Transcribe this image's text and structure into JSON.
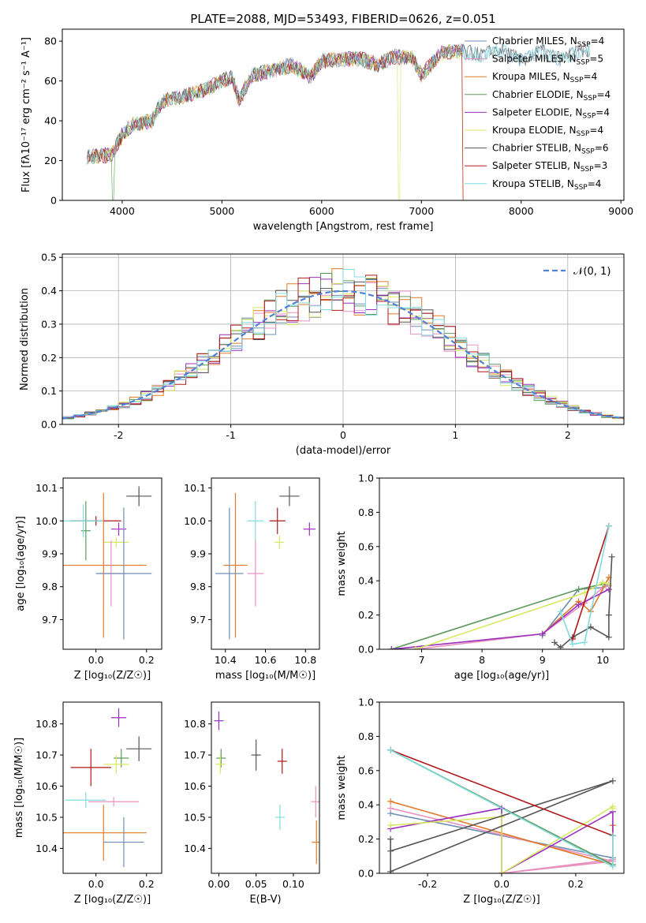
{
  "figure": {
    "title": "PLATE=2088, MJD=53493, FIBERID=0626, z=0.051"
  },
  "series": [
    {
      "key": "chab_miles",
      "name": "Chabrier MILES",
      "nssp": "4",
      "color": "#6f8fb3"
    },
    {
      "key": "salp_miles",
      "name": "Salpeter MILES",
      "nssp": "5",
      "color": "#e890c0"
    },
    {
      "key": "krou_miles",
      "name": "Kroupa MILES",
      "nssp": "4",
      "color": "#e07a28"
    },
    {
      "key": "chab_elodie",
      "name": "Chabrier ELODIE",
      "nssp": "4",
      "color": "#5c9a5c"
    },
    {
      "key": "salp_elodie",
      "name": "Salpeter ELODIE",
      "nssp": "4",
      "color": "#9b30c0"
    },
    {
      "key": "krou_elodie",
      "name": "Kroupa ELODIE",
      "nssp": "4",
      "color": "#d8e860"
    },
    {
      "key": "chab_stelib",
      "name": "Chabrier STELIB",
      "nssp": "6",
      "color": "#555555"
    },
    {
      "key": "salp_stelib",
      "name": "Salpeter STELIB",
      "nssp": "3",
      "color": "#b01818"
    },
    {
      "key": "krou_stelib",
      "name": "Kroupa STELIB",
      "nssp": "4",
      "color": "#80dce0"
    }
  ],
  "chart_data": [
    {
      "id": "spectrum",
      "type": "line",
      "xlabel": "wavelength [Angstrom, rest frame]",
      "ylabel": "Flux [fλ10⁻¹⁷ erg cm⁻² s⁻¹ A⁻¹]",
      "xlim": [
        3400,
        9030
      ],
      "ylim": [
        0,
        86
      ],
      "xticks": [
        4000,
        5000,
        6000,
        7000,
        8000,
        9000
      ],
      "yticks": [
        0,
        20,
        40,
        60,
        80
      ],
      "data_wave": [
        3650,
        3900,
        4000,
        4100,
        4300,
        4400,
        4600,
        4800,
        5000,
        5100,
        5175,
        5300,
        5500,
        5700,
        5890,
        6000,
        6200,
        6400,
        6563,
        6700,
        6900,
        7000,
        7200,
        7400,
        7600,
        7800,
        8000,
        8200,
        8400,
        8600,
        8700
      ],
      "data_flux": [
        22,
        23,
        33,
        38,
        40,
        50,
        52,
        55,
        60,
        62,
        50,
        63,
        65,
        68,
        62,
        70,
        71,
        71,
        68,
        72,
        72,
        63,
        74,
        75,
        73,
        76,
        70,
        75,
        71,
        75,
        76
      ],
      "model_cut": [
        {
          "series": "krou_elodie",
          "wave": 6780
        },
        {
          "series": "salp_stelib",
          "wave": 7420
        },
        {
          "series": "krou_miles",
          "wave": 7420
        },
        {
          "series": "chab_elodie",
          "wave": 3910
        }
      ],
      "grid": false,
      "legend": "top-right"
    },
    {
      "id": "residuals",
      "type": "line",
      "xlabel": "(data-model)/error",
      "ylabel": "Normed distribution",
      "xlim": [
        -2.5,
        2.5
      ],
      "ylim": [
        0,
        0.51
      ],
      "xticks": [
        -2,
        -1,
        0,
        1,
        2
      ],
      "yticks": [
        0.0,
        0.1,
        0.2,
        0.3,
        0.4,
        0.5
      ],
      "normal_label": "𝒩(0, 1)",
      "normal_color": "#5080d8",
      "bin_width": 0.1,
      "grid": true,
      "legend": "top-right"
    },
    {
      "id": "age_z",
      "type": "scatter",
      "xlabel": "Z [log₁₀(Z/Z☉)]",
      "ylabel": "age  [log₁₀(age/yr)]",
      "xlim": [
        -0.13,
        0.26
      ],
      "ylim": [
        9.61,
        10.13
      ],
      "xticks": [
        0.0,
        0.2
      ],
      "yticks": [
        9.7,
        9.8,
        9.9,
        10.0,
        10.1
      ],
      "points": [
        {
          "series": "chab_stelib",
          "x": 0.17,
          "y": 10.075,
          "ex": 0.05,
          "ey": 0.03
        },
        {
          "series": "salp_elodie",
          "x": 0.09,
          "y": 9.975,
          "ex": 0.03,
          "ey": 0.02
        },
        {
          "series": "chab_elodie",
          "x": -0.04,
          "y": 9.97,
          "ex": 0.0,
          "ey": 0.09
        },
        {
          "series": "salp_stelib",
          "x": 0.0,
          "y": 10.0,
          "ex": 0.1,
          "ey": 0.0
        },
        {
          "series": "krou_stelib",
          "x": -0.05,
          "y": 10.0,
          "ex": 0.08,
          "ey": 0.05
        },
        {
          "series": "krou_elodie",
          "x": 0.08,
          "y": 9.935,
          "ex": 0.05,
          "ey": 0.0
        },
        {
          "series": "krou_miles",
          "x": 0.03,
          "y": 9.865,
          "ex": 0.17,
          "ey": 0.22
        },
        {
          "series": "salp_miles",
          "x": 0.06,
          "y": 9.84,
          "ex": 0.06,
          "ey": 0.1
        },
        {
          "series": "chab_miles",
          "x": 0.11,
          "y": 9.84,
          "ex": 0.11,
          "ey": 0.2
        }
      ]
    },
    {
      "id": "age_mass",
      "type": "scatter",
      "xlabel": "mass [log₁₀(M/M☉)]",
      "ylabel": "",
      "xlim": [
        10.33,
        10.87
      ],
      "ylim": [
        9.61,
        10.13
      ],
      "xticks": [
        10.4,
        10.6,
        10.8
      ],
      "yticks": [
        9.7,
        9.8,
        9.9,
        10.0,
        10.1
      ],
      "points": [
        {
          "series": "chab_stelib",
          "x": 10.72,
          "y": 10.075,
          "ex": 0.05,
          "ey": 0.03
        },
        {
          "series": "krou_stelib",
          "x": 10.55,
          "y": 10.0,
          "ex": 0.04,
          "ey": 0.06
        },
        {
          "series": "salp_stelib",
          "x": 10.66,
          "y": 10.0,
          "ex": 0.04,
          "ey": 0.04
        },
        {
          "series": "salp_elodie",
          "x": 10.82,
          "y": 9.975,
          "ex": 0.03,
          "ey": 0.02
        },
        {
          "series": "krou_elodie",
          "x": 10.67,
          "y": 9.935,
          "ex": 0.02,
          "ey": 0.02
        },
        {
          "series": "krou_miles",
          "x": 10.45,
          "y": 9.865,
          "ex": 0.06,
          "ey": 0.22
        },
        {
          "series": "salp_miles",
          "x": 10.55,
          "y": 9.84,
          "ex": 0.04,
          "ey": 0.1
        },
        {
          "series": "chab_miles",
          "x": 10.42,
          "y": 9.84,
          "ex": 0.07,
          "ey": 0.2
        }
      ]
    },
    {
      "id": "mw_age",
      "type": "line",
      "xlabel": "age  [log₁₀(age/yr)]",
      "ylabel": "mass weight",
      "xlim": [
        6.3,
        10.35
      ],
      "ylim": [
        0.0,
        1.0
      ],
      "xticks": [
        7,
        8,
        9,
        10
      ],
      "yticks": [
        0.0,
        0.2,
        0.4,
        0.6,
        0.8,
        1.0
      ],
      "lines": [
        {
          "series": "chab_miles",
          "x": [
            9.0,
            9.6,
            10.0,
            10.1
          ],
          "y": [
            0.08,
            0.35,
            0.36,
            0.38
          ]
        },
        {
          "series": "salp_miles",
          "x": [
            6.9,
            9.0,
            9.7,
            10.0,
            10.1
          ],
          "y": [
            0.0,
            0.09,
            0.27,
            0.36,
            0.37
          ]
        },
        {
          "series": "krou_miles",
          "x": [
            9.0,
            9.6,
            9.8,
            10.1
          ],
          "y": [
            0.09,
            0.28,
            0.22,
            0.42
          ]
        },
        {
          "series": "chab_elodie",
          "x": [
            6.5,
            9.6,
            10.0
          ],
          "y": [
            0.0,
            0.35,
            0.38
          ]
        },
        {
          "series": "salp_elodie",
          "x": [
            6.5,
            9.0,
            9.6,
            10.1
          ],
          "y": [
            0.0,
            0.09,
            0.26,
            0.35
          ]
        },
        {
          "series": "krou_elodie",
          "x": [
            6.9,
            9.7,
            10.0,
            10.1
          ],
          "y": [
            0.0,
            0.33,
            0.39,
            0.38
          ]
        },
        {
          "series": "chab_stelib",
          "x": [
            9.2,
            9.3,
            9.5,
            9.8,
            10.1,
            10.1,
            10.15
          ],
          "y": [
            0.04,
            0.01,
            0.07,
            0.13,
            0.07,
            0.2,
            0.54
          ]
        },
        {
          "series": "salp_stelib",
          "x": [
            9.5,
            10.1
          ],
          "y": [
            0.06,
            0.72
          ]
        },
        {
          "series": "krou_stelib",
          "x": [
            9.3,
            9.5,
            9.7,
            10.1
          ],
          "y": [
            0.22,
            0.03,
            0.04,
            0.72
          ]
        }
      ]
    },
    {
      "id": "mass_z",
      "type": "scatter",
      "xlabel": "Z [log₁₀(Z/Z☉)]",
      "ylabel": "mass [log₁₀(M/M☉)]",
      "xlim": [
        -0.13,
        0.26
      ],
      "ylim": [
        10.32,
        10.87
      ],
      "xticks": [
        0.0,
        0.2
      ],
      "yticks": [
        10.4,
        10.5,
        10.6,
        10.7,
        10.8
      ],
      "points": [
        {
          "series": "salp_elodie",
          "x": 0.09,
          "y": 10.82,
          "ex": 0.03,
          "ey": 0.03
        },
        {
          "series": "chab_stelib",
          "x": 0.17,
          "y": 10.72,
          "ex": 0.05,
          "ey": 0.04
        },
        {
          "series": "chab_elodie",
          "x": 0.1,
          "y": 10.69,
          "ex": 0.03,
          "ey": 0.03
        },
        {
          "series": "krou_elodie",
          "x": 0.08,
          "y": 10.67,
          "ex": 0.05,
          "ey": 0.03
        },
        {
          "series": "salp_stelib",
          "x": -0.02,
          "y": 10.66,
          "ex": 0.08,
          "ey": 0.06
        },
        {
          "series": "krou_stelib",
          "x": -0.04,
          "y": 10.555,
          "ex": 0.08,
          "ey": 0.025
        },
        {
          "series": "salp_miles",
          "x": 0.07,
          "y": 10.55,
          "ex": 0.1,
          "ey": 0.0
        },
        {
          "series": "krou_miles",
          "x": 0.03,
          "y": 10.45,
          "ex": 0.17,
          "ey": 0.09
        },
        {
          "series": "chab_miles",
          "x": 0.11,
          "y": 10.42,
          "ex": 0.08,
          "ey": 0.08
        }
      ]
    },
    {
      "id": "mass_ebv",
      "type": "scatter",
      "xlabel": "E(B-V)",
      "ylabel": "",
      "xlim": [
        -0.01,
        0.135
      ],
      "ylim": [
        10.32,
        10.87
      ],
      "xticks": [
        0.0,
        0.05,
        0.1
      ],
      "xticklabels": [
        "0.00",
        "0.05",
        "0.10"
      ],
      "yticks": [
        10.4,
        10.5,
        10.6,
        10.7,
        10.8
      ],
      "points": [
        {
          "series": "salp_elodie",
          "x": 0.0,
          "y": 10.81,
          "ex": 0.0,
          "ey": 0.03
        },
        {
          "series": "chab_elodie",
          "x": 0.003,
          "y": 10.69,
          "ex": 0.0,
          "ey": 0.03
        },
        {
          "series": "krou_elodie",
          "x": 0.002,
          "y": 10.67,
          "ex": 0.0,
          "ey": 0.03
        },
        {
          "series": "chab_stelib",
          "x": 0.05,
          "y": 10.7,
          "ex": 0.0,
          "ey": 0.05
        },
        {
          "series": "salp_stelib",
          "x": 0.085,
          "y": 10.68,
          "ex": 0.0,
          "ey": 0.04
        },
        {
          "series": "krou_stelib",
          "x": 0.082,
          "y": 10.5,
          "ex": 0.0,
          "ey": 0.04
        },
        {
          "series": "salp_miles",
          "x": 0.13,
          "y": 10.55,
          "ex": 0.0,
          "ey": 0.05
        },
        {
          "series": "krou_miles",
          "x": 0.131,
          "y": 10.42,
          "ex": 0.0,
          "ey": 0.07
        }
      ]
    },
    {
      "id": "mw_z",
      "type": "line",
      "xlabel": "Z [log₁₀(Z/Z☉)]",
      "ylabel": "mass weight",
      "xlim": [
        -0.33,
        0.33
      ],
      "ylim": [
        0.0,
        1.0
      ],
      "xticks": [
        -0.2,
        0.0,
        0.2
      ],
      "yticks": [
        0.0,
        0.2,
        0.4,
        0.6,
        0.8,
        1.0
      ],
      "lines": [
        {
          "series": "chab_miles",
          "x": [
            -0.3,
            0.3
          ],
          "y": [
            0.35,
            0.09
          ]
        },
        {
          "series": "salp_miles",
          "x": [
            -0.3,
            0.3,
            0.0,
            0.3
          ],
          "y": [
            0.38,
            0.07,
            0.0,
            0.08
          ]
        },
        {
          "series": "krou_miles",
          "x": [
            -0.3,
            0.3,
            0.3
          ],
          "y": [
            0.42,
            0.05,
            0.28
          ]
        },
        {
          "series": "chab_elodie",
          "x": [
            -0.3,
            0.3
          ],
          "y": [
            0.72,
            0.05
          ]
        },
        {
          "series": "salp_elodie",
          "x": [
            -0.3,
            0.0,
            0.0,
            0.3,
            0.3
          ],
          "y": [
            0.26,
            0.38,
            0.0,
            0.36,
            0.22
          ]
        },
        {
          "series": "krou_elodie",
          "x": [
            -0.3,
            0.0,
            0.0,
            0.3,
            0.3
          ],
          "y": [
            0.28,
            0.33,
            0.0,
            0.39,
            0.38
          ]
        },
        {
          "series": "chab_stelib",
          "x": [
            -0.3,
            -0.3,
            -0.3,
            0.3,
            -0.3
          ],
          "y": [
            0.0,
            0.2,
            0.13,
            0.54,
            0.01
          ]
        },
        {
          "series": "salp_stelib",
          "x": [
            -0.3,
            0.3
          ],
          "y": [
            0.72,
            0.22
          ]
        },
        {
          "series": "krou_stelib",
          "x": [
            -0.3,
            0.3,
            0.3
          ],
          "y": [
            0.72,
            0.04,
            0.22
          ]
        }
      ]
    }
  ]
}
